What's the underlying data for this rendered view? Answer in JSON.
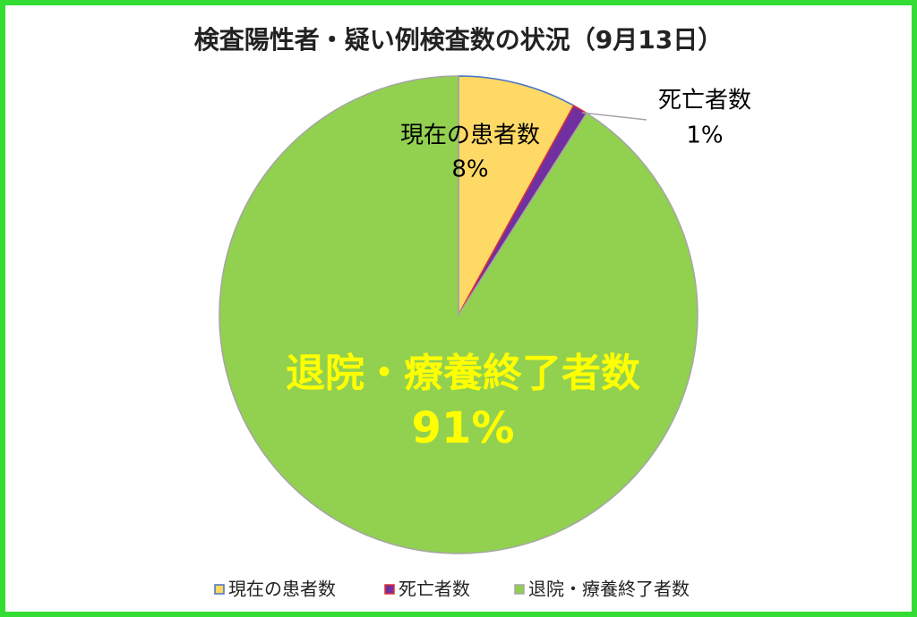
{
  "chart_data": {
    "type": "pie",
    "title": "検査陽性者・疑い例検査数の状況（9月13日）",
    "categories": [
      "現在の患者数",
      "死亡者数",
      "退院・療養終了者数"
    ],
    "values": [
      8,
      1,
      91
    ],
    "value_labels": [
      "8%",
      "1%",
      "91%"
    ],
    "colors": [
      "#ffd966",
      "#7030a0",
      "#92d050"
    ],
    "edge_colors": [
      "#4472c4",
      "#e03030",
      "#a5a5a5"
    ],
    "label_colors": [
      "#000000",
      "#000000",
      "#ffff00"
    ],
    "legend": "bottom"
  }
}
